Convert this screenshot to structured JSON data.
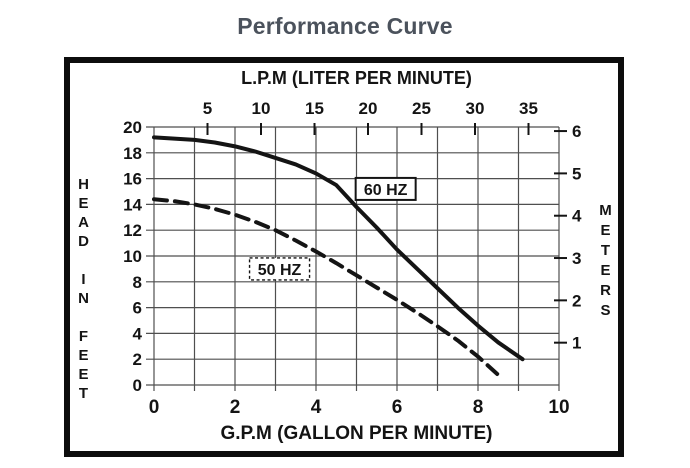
{
  "page": {
    "title": "Performance Curve"
  },
  "colors": {
    "background": "#ffffff",
    "frame": "#0d0d0d",
    "ink": "#141414",
    "grid": "#4f4f4f",
    "title_text": "#4b525c"
  },
  "chart_data": {
    "type": "line",
    "title": "Performance Curve",
    "grid": true,
    "x_axis_bottom": {
      "label": "G.P.M (GALLON PER MINUTE)",
      "min": 0,
      "max": 10,
      "tick_labels": [
        0,
        2,
        4,
        6,
        8,
        10
      ],
      "gridline_step": 1
    },
    "x_axis_top": {
      "label": "L.P.M (LITER PER MINUTE)",
      "tick_labels": [
        5,
        10,
        15,
        20,
        25,
        30,
        35
      ],
      "lpm_per_gpm": 3.785
    },
    "y_axis_left": {
      "label": "HEAD IN FEET",
      "min": 0,
      "max": 20,
      "tick_labels": [
        20,
        18,
        16,
        14,
        12,
        10,
        8,
        6,
        4,
        2,
        0
      ],
      "gridline_step": 2
    },
    "y_axis_right": {
      "label": "METERS",
      "tick_labels": [
        6,
        5,
        4,
        3,
        2,
        1
      ],
      "feet_per_meter": 3.2808
    },
    "series": [
      {
        "name": "60 HZ",
        "line_style": "solid",
        "color": "#141414",
        "x": [
          0,
          0.5,
          1,
          1.5,
          2,
          2.5,
          3,
          3.5,
          4,
          4.5,
          5,
          5.5,
          6,
          6.5,
          7,
          7.5,
          8,
          8.5,
          9.1
        ],
        "y": [
          19.2,
          19.1,
          19.0,
          18.8,
          18.5,
          18.1,
          17.6,
          17.1,
          16.4,
          15.5,
          13.8,
          12.2,
          10.5,
          9.0,
          7.5,
          6.0,
          4.6,
          3.3,
          2.0
        ],
        "label_box": {
          "x": 5.72,
          "y": 15.2,
          "border": "solid"
        }
      },
      {
        "name": "50 HZ",
        "line_style": "dashed",
        "color": "#141414",
        "x": [
          0,
          0.5,
          1,
          1.5,
          2,
          2.5,
          3,
          3.5,
          4,
          4.5,
          5,
          5.5,
          6,
          6.5,
          7,
          7.5,
          8,
          8.6
        ],
        "y": [
          14.4,
          14.25,
          14.0,
          13.65,
          13.2,
          12.65,
          12.0,
          11.2,
          10.35,
          9.45,
          8.5,
          7.55,
          6.6,
          5.6,
          4.55,
          3.45,
          2.2,
          0.5
        ],
        "label_box": {
          "x": 3.1,
          "y": 9.0,
          "border": "dashed"
        }
      }
    ]
  }
}
